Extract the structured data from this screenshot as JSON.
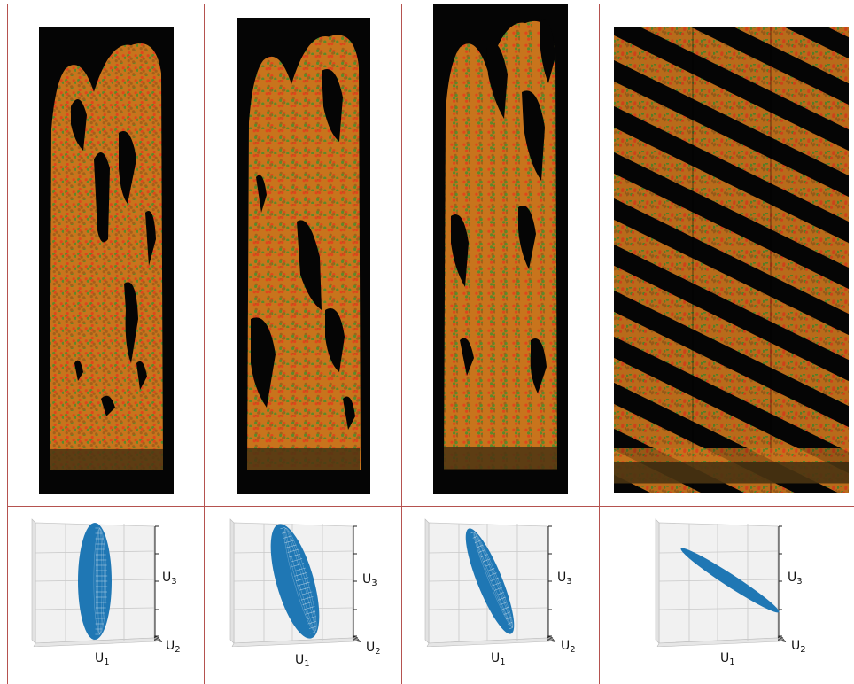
{
  "panels": [
    {
      "id": "a",
      "x_label": "U",
      "x_sub": "1",
      "y_label": "U",
      "y_sub": "3",
      "z_label": "U",
      "z_sub": "2"
    },
    {
      "id": "b",
      "x_label": "U",
      "x_sub": "1",
      "y_label": "U",
      "y_sub": "3",
      "z_label": "U",
      "z_sub": "2"
    },
    {
      "id": "c",
      "x_label": "U",
      "x_sub": "1",
      "y_label": "U",
      "y_sub": "3",
      "z_label": "U",
      "z_sub": "2"
    },
    {
      "id": "d",
      "x_label": "U",
      "x_sub": "1",
      "y_label": "U",
      "y_sub": "3",
      "z_label": "U",
      "z_sub": "2"
    }
  ],
  "colors": {
    "grid_border": "#b5524f",
    "sim_background": "#050505",
    "particle_orange": "#c8741c",
    "particle_green": "#5a8a2a",
    "particle_red": "#e0461c",
    "ellipsoid": "#1f77b4",
    "plot_pane": "#f1f1f1"
  },
  "icons": {
    "ellipsoid": "ellipsoid-3d-icon"
  }
}
